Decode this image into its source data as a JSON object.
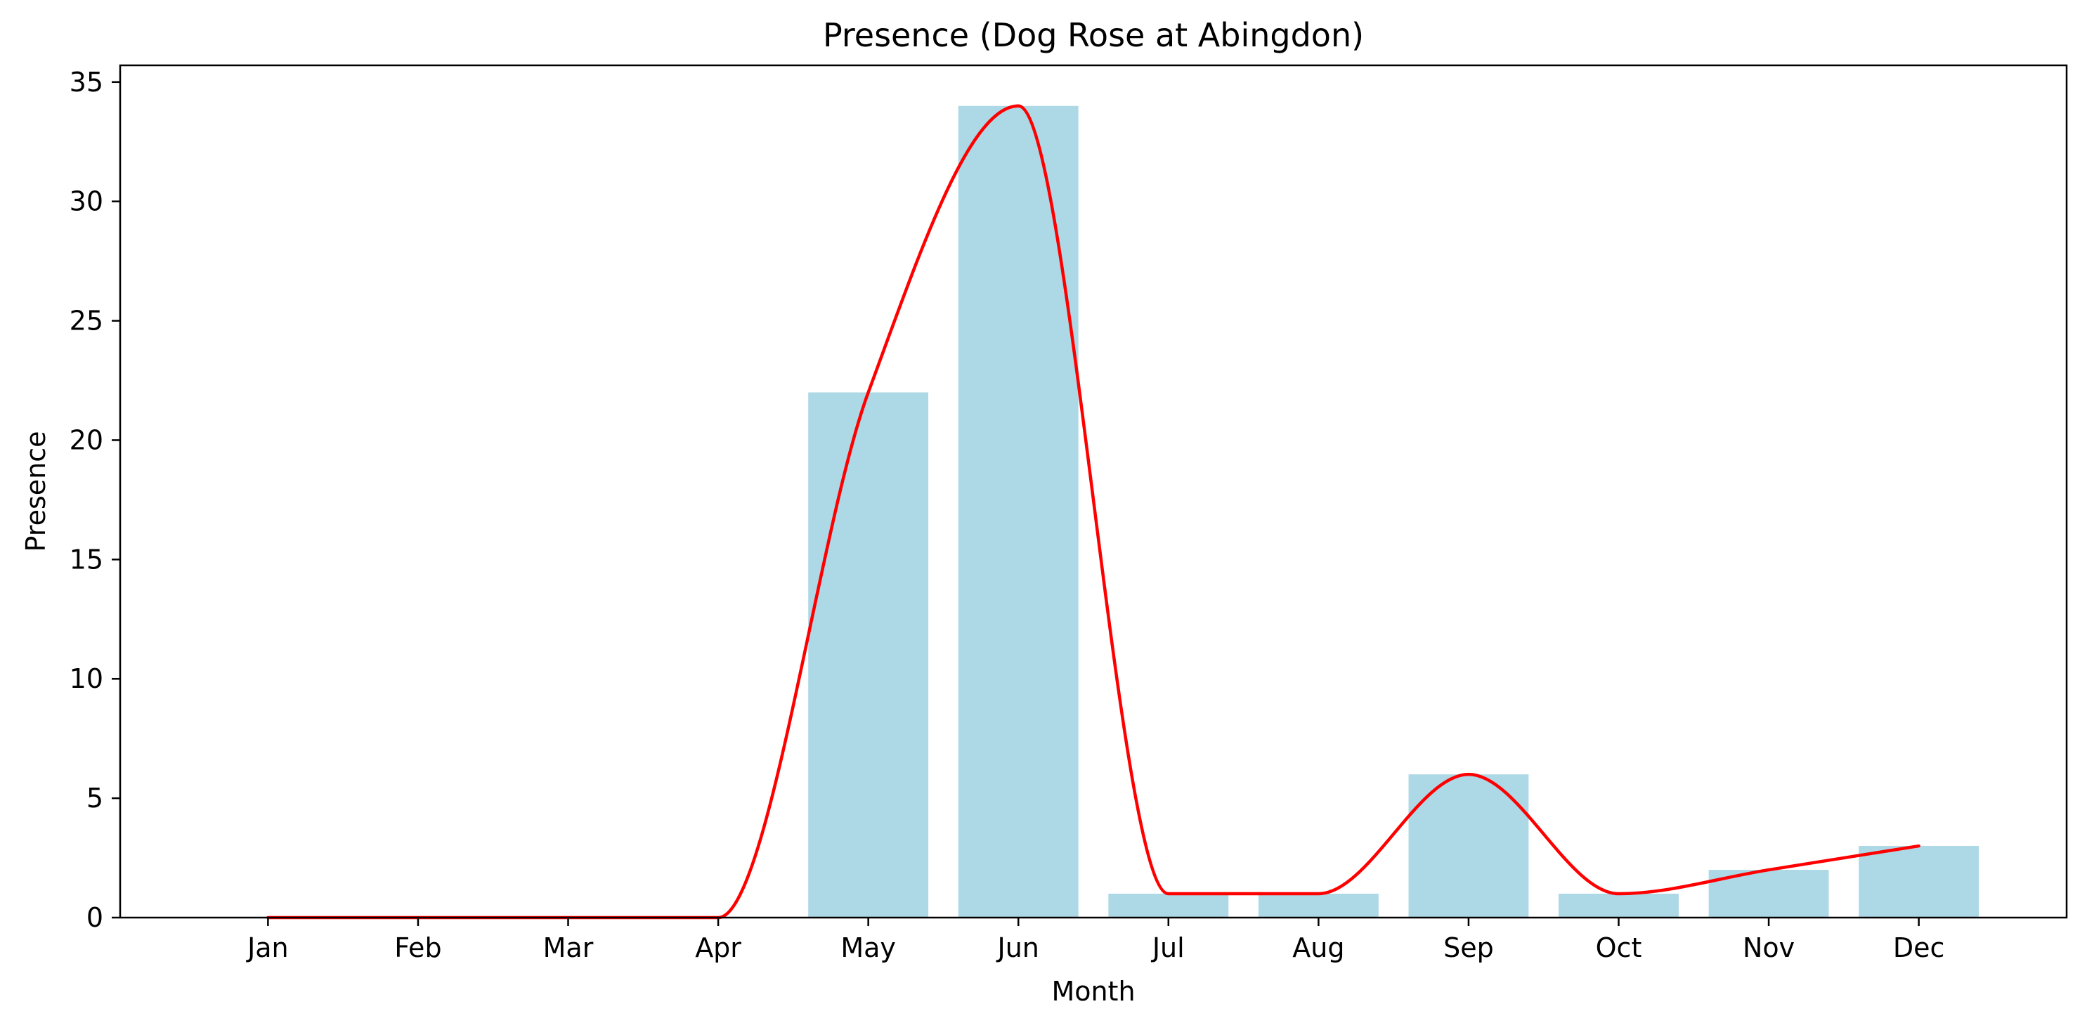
{
  "chart_data": {
    "type": "bar",
    "title": "Presence (Dog Rose at Abingdon)",
    "xlabel": "Month",
    "ylabel": "Presence",
    "categories": [
      "Jan",
      "Feb",
      "Mar",
      "Apr",
      "May",
      "Jun",
      "Jul",
      "Aug",
      "Sep",
      "Oct",
      "Nov",
      "Dec"
    ],
    "values": [
      0,
      0,
      0,
      0,
      22,
      34,
      1,
      1,
      6,
      1,
      2,
      3
    ],
    "overlay_line": {
      "style": "smooth",
      "values": [
        0,
        0,
        0,
        0,
        22,
        34,
        1,
        1,
        6,
        1,
        2,
        3
      ]
    },
    "ylim": [
      0,
      35.7
    ],
    "yticks": [
      0,
      5,
      10,
      15,
      20,
      25,
      30,
      35
    ],
    "bar_color": "#add8e6",
    "line_color": "#ff0000",
    "grid": false,
    "legend": "none"
  }
}
